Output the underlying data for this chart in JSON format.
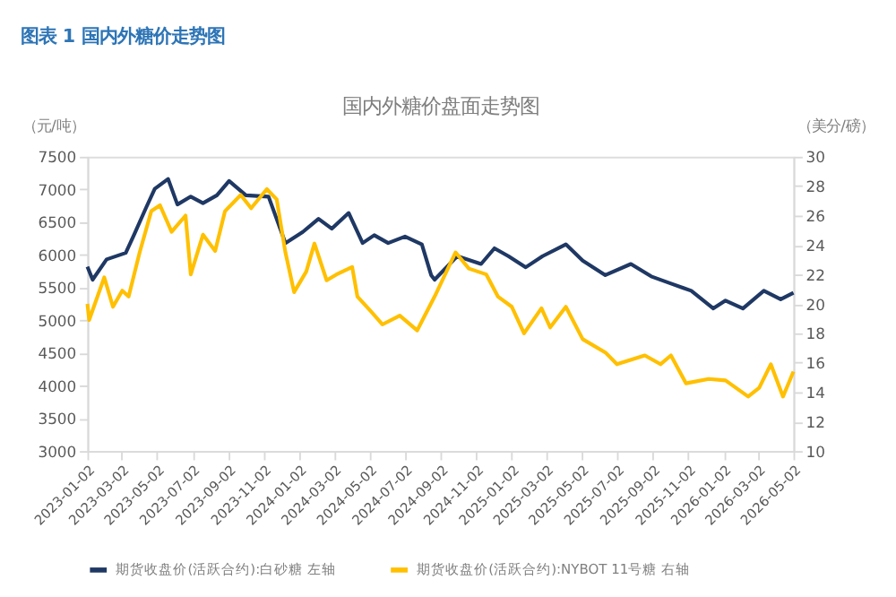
{
  "chart_data": {
    "type": "line",
    "title": "图表 1 国内外糖价走势图",
    "subtitle": "国内外糖价盘面走势图",
    "ylabel": "（元/吨）",
    "y2label": "（美分/磅）",
    "xlim": [
      "2023-01-02",
      "2026-05-02"
    ],
    "xticks": [
      "2023-01-02",
      "2023-03-02",
      "2023-05-02",
      "2023-07-02",
      "2023-09-02",
      "2023-11-02",
      "2024-01-02",
      "2024-03-02",
      "2024-05-02",
      "2024-07-02",
      "2024-09-02",
      "2024-11-02",
      "2025-01-02",
      "2025-03-02",
      "2025-05-02",
      "2025-07-02",
      "2025-09-02",
      "2025-11-02",
      "2026-01-02",
      "2026-03-02",
      "2026-05-02"
    ],
    "ylim": [
      3000,
      7500
    ],
    "yticks": [
      3000,
      3500,
      4000,
      4500,
      5000,
      5500,
      6000,
      6500,
      7000,
      7500
    ],
    "y2lim": [
      10,
      30
    ],
    "y2ticks": [
      10,
      12,
      14,
      16,
      18,
      20,
      22,
      24,
      26,
      28,
      30
    ],
    "grid": false,
    "legend": "bottom",
    "series": [
      {
        "name": "期货收盘价(活跃合约):白砂糖  左轴",
        "color": "#1f3864",
        "x": [
          "2023-01-02",
          "2023-01-11",
          "2023-02-04",
          "2023-03-09",
          "2023-03-23",
          "2023-04-13",
          "2023-04-28",
          "2023-05-21",
          "2023-06-06",
          "2023-06-29",
          "2023-07-20",
          "2023-08-13",
          "2023-09-03",
          "2023-10-02",
          "2023-11-10",
          "2023-12-09",
          "2024-01-08",
          "2024-02-04",
          "2024-02-27",
          "2024-03-27",
          "2024-04-20",
          "2024-05-10",
          "2024-06-03",
          "2024-07-02",
          "2024-07-31",
          "2024-08-16",
          "2024-08-22",
          "2024-09-30",
          "2024-11-10",
          "2024-12-03",
          "2024-12-27",
          "2025-01-26",
          "2025-02-24",
          "2025-04-05",
          "2025-05-04",
          "2025-06-12",
          "2025-07-26",
          "2025-08-30",
          "2025-09-30",
          "2025-11-07",
          "2025-12-15",
          "2026-01-05",
          "2026-02-04",
          "2026-03-12",
          "2026-04-10",
          "2026-05-02"
        ],
        "values": [
          5820,
          5620,
          5930,
          6030,
          6300,
          6720,
          7010,
          7160,
          6770,
          6890,
          6790,
          6910,
          7130,
          6910,
          6890,
          6180,
          6350,
          6550,
          6400,
          6640,
          6180,
          6300,
          6180,
          6280,
          6160,
          5690,
          5620,
          5980,
          5860,
          6100,
          5980,
          5810,
          5980,
          6160,
          5910,
          5690,
          5860,
          5670,
          5570,
          5450,
          5180,
          5300,
          5180,
          5450,
          5320,
          5420
        ]
      },
      {
        "name": "期货收盘价(活跃合约):NYBOT 11号糖  右轴",
        "color": "#ffc000",
        "axis": "y2",
        "x": [
          "2023-01-02",
          "2023-01-05",
          "2023-01-31",
          "2023-02-15",
          "2023-03-03",
          "2023-03-14",
          "2023-04-02",
          "2023-04-22",
          "2023-05-07",
          "2023-05-27",
          "2023-06-20",
          "2023-06-29",
          "2023-07-20",
          "2023-08-10",
          "2023-08-27",
          "2023-09-23",
          "2023-10-11",
          "2023-11-07",
          "2023-11-24",
          "2023-12-09",
          "2023-12-24",
          "2024-01-14",
          "2024-01-28",
          "2024-02-18",
          "2024-03-06",
          "2024-04-02",
          "2024-04-11",
          "2024-05-04",
          "2024-05-24",
          "2024-06-23",
          "2024-07-23",
          "2024-08-22",
          "2024-09-27",
          "2024-10-20",
          "2024-11-19",
          "2024-12-09",
          "2025-01-02",
          "2025-01-23",
          "2025-02-22",
          "2025-03-09",
          "2025-04-05",
          "2025-05-04",
          "2025-06-12",
          "2025-07-02",
          "2025-08-19",
          "2025-09-15",
          "2025-10-03",
          "2025-10-29",
          "2025-12-07",
          "2026-01-05",
          "2026-02-13",
          "2026-03-04",
          "2026-03-24",
          "2026-04-14",
          "2026-05-02"
        ],
        "values": [
          20.0,
          18.9,
          21.8,
          19.8,
          20.9,
          20.5,
          23.5,
          26.3,
          26.7,
          24.9,
          26.0,
          22.0,
          24.7,
          23.6,
          26.3,
          27.4,
          26.5,
          27.8,
          27.1,
          23.5,
          20.8,
          22.2,
          24.1,
          21.6,
          22.0,
          22.5,
          20.5,
          19.5,
          18.6,
          19.2,
          18.2,
          20.5,
          23.5,
          22.4,
          22.0,
          20.5,
          19.8,
          18.0,
          19.7,
          18.4,
          19.8,
          17.6,
          16.7,
          15.9,
          16.5,
          15.9,
          16.5,
          14.6,
          14.9,
          14.8,
          13.7,
          14.3,
          15.9,
          13.7,
          15.4
        ]
      }
    ]
  }
}
